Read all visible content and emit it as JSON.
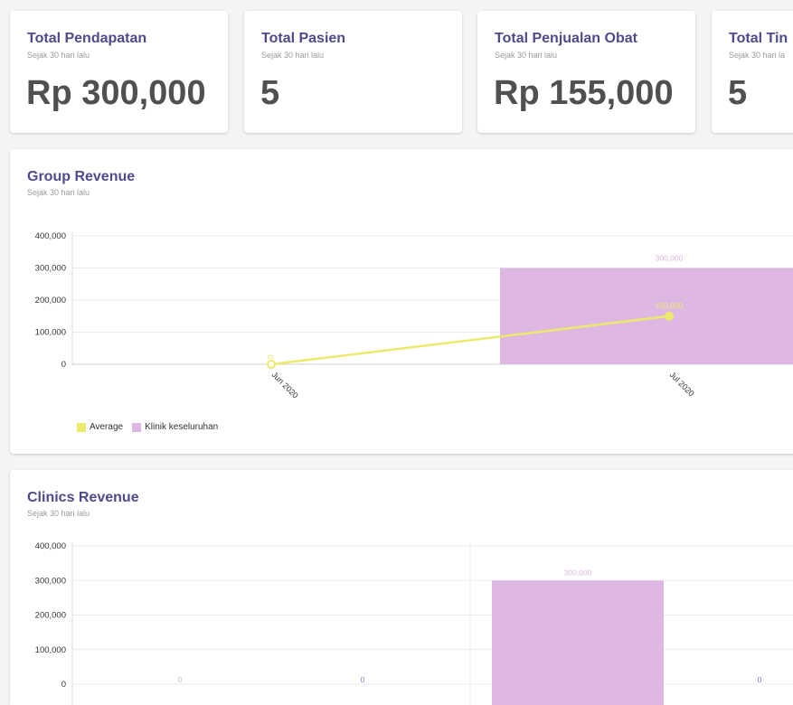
{
  "stats": [
    {
      "title": "Total Pendapatan",
      "subtitle": "Sejak 30 hari lalu",
      "value": "Rp 300,000"
    },
    {
      "title": "Total Pasien",
      "subtitle": "Sejak 30 hari lalu",
      "value": "5"
    },
    {
      "title": "Total Penjualan Obat",
      "subtitle": "Sejak 30 hari lalu",
      "value": "Rp 155,000"
    },
    {
      "title": "Total Tin",
      "subtitle": "Sejak 30 hari la",
      "value": "5"
    }
  ],
  "group_revenue": {
    "title": "Group Revenue",
    "subtitle": "Sejak 30 hari lalu"
  },
  "clinics_revenue": {
    "title": "Clinics Revenue",
    "subtitle": "Sejak 30 hari lalu"
  },
  "chart_data": [
    {
      "type": "bar",
      "title": "Group Revenue",
      "subtitle": "Sejak 30 hari lalu",
      "categories": [
        "Jun 2020",
        "Jul 2020"
      ],
      "ylim": [
        0,
        400000
      ],
      "yticks": [
        "400,000",
        "300,000",
        "200,000",
        "100,000",
        "0"
      ],
      "series": [
        {
          "name": "Klinik keseluruhan",
          "kind": "bar",
          "color": "#dfb7e3",
          "values": [
            0,
            300000
          ],
          "labels": [
            "",
            "300,000"
          ]
        },
        {
          "name": "Average",
          "kind": "line",
          "color": "#ecea6a",
          "values": [
            0,
            150000
          ],
          "labels": [
            "0",
            "150,000"
          ]
        }
      ],
      "legend": "bottom-left",
      "grid": true
    },
    {
      "type": "bar",
      "title": "Clinics Revenue",
      "subtitle": "Sejak 30 hari lalu",
      "ylim": [
        0,
        400000
      ],
      "yticks": [
        "400,000",
        "300,000",
        "200,000",
        "100,000",
        "0"
      ],
      "bars": [
        {
          "value": 0,
          "label": "0",
          "label_color": "#dfb7e3"
        },
        {
          "value": 0,
          "label": "0",
          "label_color": "#7f7fc4"
        },
        {
          "value": 300000,
          "label": "300,000",
          "label_color": "#dfb7e3"
        },
        {
          "value": 0,
          "label": "0",
          "label_color": "#7f7fc4"
        }
      ],
      "bar_color": "#dfb7e3",
      "grid": true
    }
  ]
}
